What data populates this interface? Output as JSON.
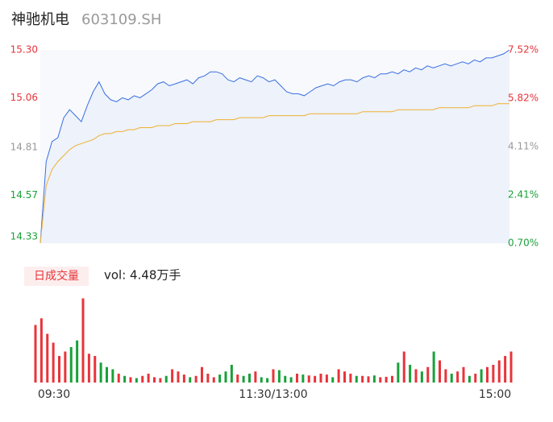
{
  "chart_data": [
    {
      "type": "line",
      "title": "神驰机电",
      "subtitle": "603109.SH",
      "x": [
        0,
        3,
        6,
        9,
        12,
        15,
        18,
        21,
        24,
        27,
        30,
        33,
        36,
        39,
        42,
        45,
        48,
        51,
        54,
        57,
        60,
        63,
        66,
        69,
        72,
        75,
        78,
        81,
        84,
        87,
        90,
        93,
        96,
        99,
        102,
        105,
        108,
        111,
        114,
        117,
        120,
        123,
        126,
        129,
        132,
        135,
        138,
        141,
        144,
        147,
        150,
        153,
        156,
        159,
        162,
        165,
        168,
        171,
        174,
        177,
        180,
        183,
        186,
        189,
        192,
        195,
        198,
        201,
        204,
        207,
        210,
        213,
        216,
        219,
        222,
        225,
        228,
        231,
        234,
        237,
        240
      ],
      "xlim": [
        0,
        240
      ],
      "series": [
        {
          "color": "#3b6fe0",
          "fill_color": "#3b6fe0",
          "values": [
            14.33,
            14.74,
            14.84,
            14.86,
            14.96,
            15.0,
            14.97,
            14.94,
            15.02,
            15.09,
            15.14,
            15.08,
            15.05,
            15.04,
            15.06,
            15.05,
            15.07,
            15.06,
            15.08,
            15.1,
            15.13,
            15.14,
            15.12,
            15.13,
            15.14,
            15.15,
            15.13,
            15.16,
            15.17,
            15.19,
            15.19,
            15.18,
            15.15,
            15.14,
            15.16,
            15.15,
            15.14,
            15.17,
            15.16,
            15.14,
            15.15,
            15.12,
            15.09,
            15.08,
            15.08,
            15.07,
            15.09,
            15.11,
            15.12,
            15.13,
            15.12,
            15.14,
            15.15,
            15.15,
            15.14,
            15.16,
            15.17,
            15.16,
            15.18,
            15.18,
            15.19,
            15.18,
            15.2,
            15.19,
            15.21,
            15.2,
            15.22,
            15.21,
            15.22,
            15.23,
            15.22,
            15.23,
            15.24,
            15.23,
            15.25,
            15.24,
            15.26,
            15.26,
            15.27,
            15.28,
            15.3
          ]
        },
        {
          "color": "#f0b030",
          "values": [
            14.33,
            14.62,
            14.7,
            14.74,
            14.77,
            14.8,
            14.82,
            14.83,
            14.84,
            14.85,
            14.87,
            14.88,
            14.88,
            14.89,
            14.89,
            14.9,
            14.9,
            14.91,
            14.91,
            14.91,
            14.92,
            14.92,
            14.92,
            14.93,
            14.93,
            14.93,
            14.94,
            14.94,
            14.94,
            14.94,
            14.95,
            14.95,
            14.95,
            14.95,
            14.96,
            14.96,
            14.96,
            14.96,
            14.96,
            14.97,
            14.97,
            14.97,
            14.97,
            14.97,
            14.97,
            14.97,
            14.98,
            14.98,
            14.98,
            14.98,
            14.98,
            14.98,
            14.98,
            14.98,
            14.98,
            14.99,
            14.99,
            14.99,
            14.99,
            14.99,
            14.99,
            15.0,
            15.0,
            15.0,
            15.0,
            15.0,
            15.0,
            15.0,
            15.01,
            15.01,
            15.01,
            15.01,
            15.01,
            15.01,
            15.02,
            15.02,
            15.02,
            15.02,
            15.03,
            15.03,
            15.03
          ]
        }
      ],
      "ylim": [
        14.33,
        15.3
      ],
      "yticks": [
        14.33,
        14.57,
        14.81,
        15.06,
        {
          "value": 15.3,
          "label": "15.30"
        }
      ],
      "y2lim": [
        0.7,
        7.52
      ],
      "y2ticks": [
        {
          "value": 0.7,
          "label": "0.70%"
        },
        {
          "value": 2.41,
          "label": "2.41%"
        },
        {
          "value": 4.11,
          "label": "4.11%"
        },
        {
          "value": 5.82,
          "label": "5.82%"
        },
        {
          "value": 7.52,
          "label": "7.52%"
        }
      ],
      "tick_colors": [
        "#1aa03a",
        "#1aa03a",
        "#999999",
        "#e8343a",
        "#e8343a"
      ]
    },
    {
      "type": "bar",
      "title": "日成交量",
      "annotation": "vol: 4.48万手",
      "x": [
        0,
        3,
        6,
        9,
        12,
        15,
        18,
        21,
        24,
        27,
        30,
        33,
        36,
        39,
        42,
        45,
        48,
        51,
        54,
        57,
        60,
        63,
        66,
        69,
        72,
        75,
        78,
        81,
        84,
        87,
        90,
        93,
        96,
        99,
        102,
        105,
        108,
        111,
        114,
        117,
        120,
        123,
        126,
        129,
        132,
        135,
        138,
        141,
        144,
        147,
        150,
        153,
        156,
        159,
        162,
        165,
        168,
        171,
        174,
        177,
        180,
        183,
        186,
        189,
        192,
        195,
        198,
        201,
        204,
        207,
        210,
        213,
        216,
        219,
        222,
        225,
        228,
        231,
        234,
        237,
        240
      ],
      "xlim": [
        0,
        240
      ],
      "values": [
        1300,
        1450,
        1100,
        900,
        600,
        700,
        800,
        950,
        1900,
        650,
        600,
        450,
        350,
        300,
        200,
        150,
        120,
        100,
        150,
        200,
        120,
        100,
        150,
        300,
        250,
        180,
        120,
        150,
        350,
        200,
        120,
        180,
        250,
        400,
        180,
        150,
        200,
        250,
        120,
        100,
        300,
        280,
        150,
        120,
        200,
        180,
        160,
        150,
        200,
        180,
        120,
        300,
        250,
        200,
        150,
        150,
        140,
        160,
        120,
        130,
        150,
        450,
        700,
        400,
        300,
        250,
        350,
        700,
        500,
        300,
        200,
        250,
        350,
        150,
        200,
        300,
        350,
        400,
        500,
        600,
        700
      ],
      "ylim": [
        0,
        2000
      ],
      "xticks": [
        {
          "value": 0,
          "label": "09:30"
        },
        {
          "value": 120,
          "label": "11:30/13:00"
        },
        {
          "value": 240,
          "label": "15:00"
        }
      ],
      "up_color": "#e8343a",
      "down_color": "#1aa03a"
    }
  ]
}
